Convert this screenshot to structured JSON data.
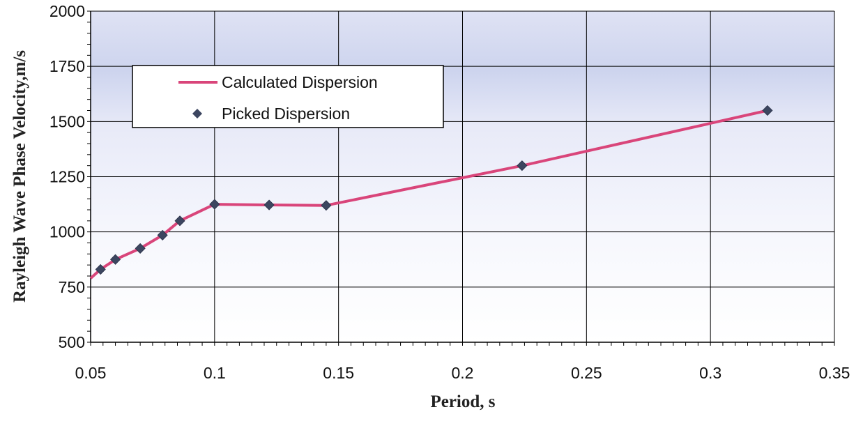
{
  "chart_data": {
    "type": "line",
    "xlabel": "Period, s",
    "ylabel": "Rayleigh Wave Phase Velocity,m/s",
    "xlim": [
      0.05,
      0.35
    ],
    "ylim": [
      500,
      2000
    ],
    "xticks": [
      "0.05",
      "0.1",
      "0.15",
      "0.2",
      "0.25",
      "0.3",
      "0.35"
    ],
    "yticks": [
      "500",
      "750",
      "1000",
      "1250",
      "1500",
      "1750",
      "2000"
    ],
    "grid": true,
    "legend_position": "top-left",
    "series": [
      {
        "name": "Calculated Dispersion",
        "kind": "line",
        "color": "#d9457a",
        "x": [
          0.05,
          0.054,
          0.06,
          0.07,
          0.079,
          0.086,
          0.1,
          0.122,
          0.145,
          0.224,
          0.323
        ],
        "y": [
          790,
          830,
          875,
          925,
          985,
          1050,
          1125,
          1122,
          1120,
          1300,
          1550
        ]
      },
      {
        "name": "Picked Dispersion",
        "kind": "marker",
        "color": "#3c4660",
        "x": [
          0.054,
          0.06,
          0.07,
          0.079,
          0.086,
          0.1,
          0.122,
          0.145,
          0.224,
          0.323
        ],
        "y": [
          830,
          875,
          925,
          985,
          1050,
          1125,
          1122,
          1120,
          1300,
          1550
        ]
      }
    ]
  }
}
